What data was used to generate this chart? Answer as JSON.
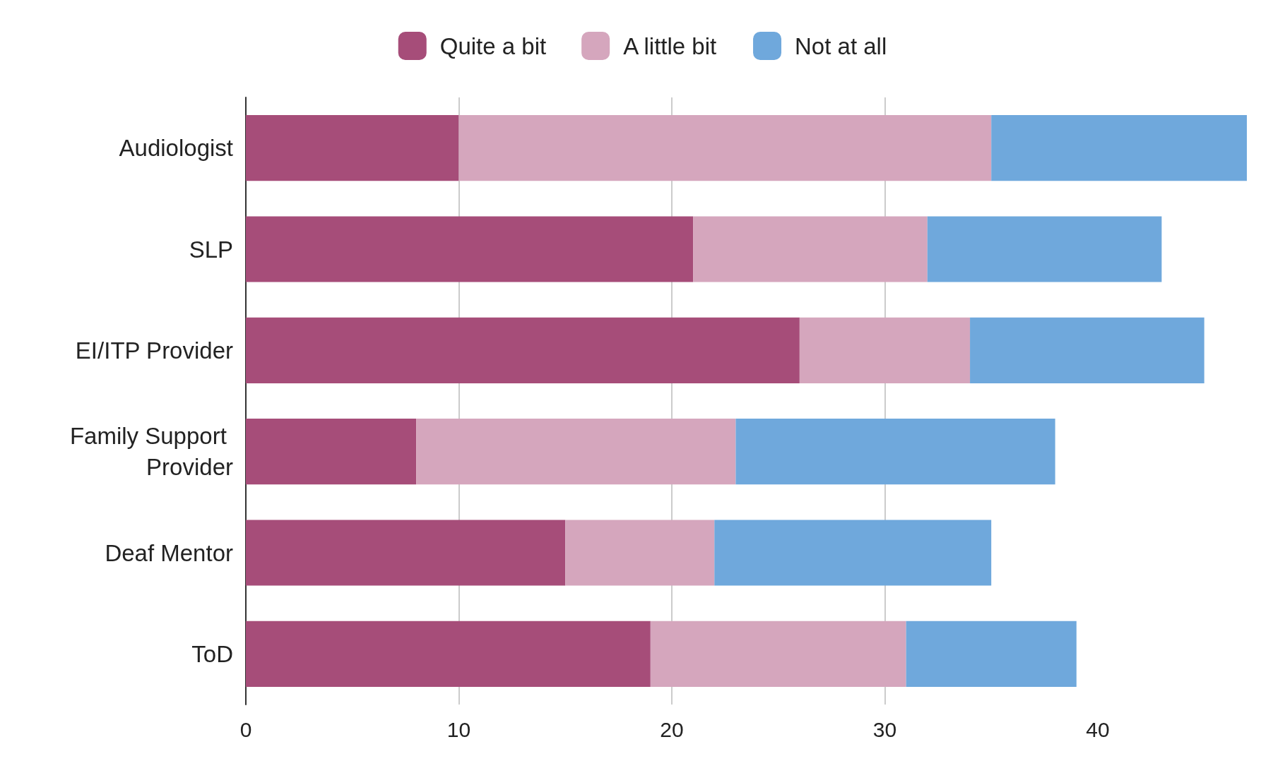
{
  "chart_data": {
    "type": "bar",
    "orientation": "horizontal",
    "stacked": true,
    "categories": [
      "Audiologist",
      "SLP",
      "EI/ITP Provider",
      "Family Support Provider",
      "Deaf Mentor",
      "ToD"
    ],
    "series": [
      {
        "name": "Quite a bit",
        "color": "#a64d79",
        "values": [
          10,
          21,
          26,
          8,
          15,
          19
        ]
      },
      {
        "name": "A little bit",
        "color": "#d5a6bd",
        "values": [
          25,
          11,
          8,
          15,
          7,
          12
        ]
      },
      {
        "name": "Not at all",
        "color": "#6fa8dc",
        "values": [
          12,
          11,
          11,
          15,
          13,
          8
        ]
      }
    ],
    "xlim": [
      0,
      47
    ],
    "xticks": [
      0,
      10,
      20,
      30,
      40
    ],
    "grid": "x",
    "legend": "top"
  }
}
